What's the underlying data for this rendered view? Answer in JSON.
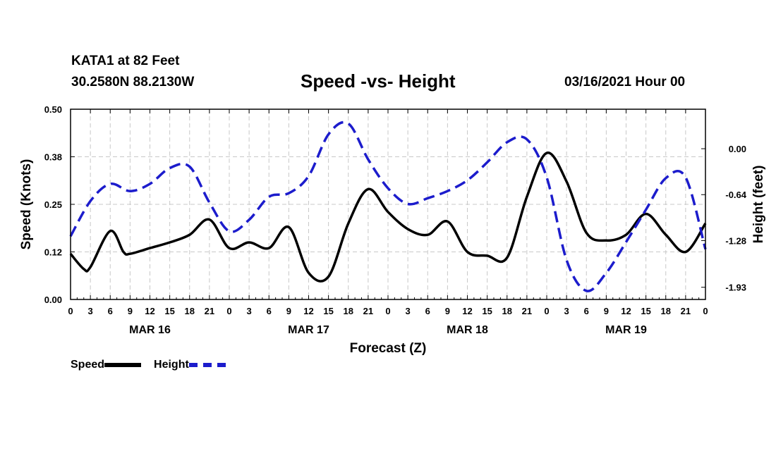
{
  "header": {
    "station": "KATA1 at 82 Feet",
    "coords": "30.2580N 88.2130W",
    "title": "Speed -vs- Height",
    "date": "03/16/2021 Hour 00"
  },
  "colors": {
    "speed": "#000000",
    "height": "#1c1ccc",
    "grid": "#c8c8c8"
  },
  "chart_data": {
    "type": "line",
    "title": "Speed -vs- Height",
    "xlabel": "Forecast (Z)",
    "ylabel": "Speed (Knots)",
    "y2label": "Height (feet)",
    "xlim": [
      0,
      96
    ],
    "ylim": [
      0,
      0.5
    ],
    "y2lim": [
      -2.1,
      0.55
    ],
    "x_ticks": [
      0,
      3,
      6,
      9,
      12,
      15,
      18,
      21,
      24,
      27,
      30,
      33,
      36,
      39,
      42,
      45,
      48,
      51,
      54,
      57,
      60,
      63,
      66,
      69,
      72,
      75,
      78,
      81,
      84,
      87,
      90,
      93,
      96
    ],
    "x_tick_labels": [
      "0",
      "3",
      "6",
      "9",
      "12",
      "15",
      "18",
      "21",
      "0",
      "3",
      "6",
      "9",
      "12",
      "15",
      "18",
      "21",
      "0",
      "3",
      "6",
      "9",
      "12",
      "15",
      "18",
      "21",
      "0",
      "3",
      "6",
      "9",
      "12",
      "15",
      "18",
      "21",
      "0"
    ],
    "day_labels": [
      {
        "x": 12,
        "label": "MAR 16"
      },
      {
        "x": 36,
        "label": "MAR 17"
      },
      {
        "x": 60,
        "label": "MAR 18"
      },
      {
        "x": 84,
        "label": "MAR 19"
      }
    ],
    "y_ticks": [
      0,
      0.125,
      0.25,
      0.375,
      0.5
    ],
    "y_tick_labels": [
      "0.00",
      "0.12",
      "0.25",
      "0.38",
      "0.50"
    ],
    "y2_ticks": [
      0,
      -0.64,
      -1.28,
      -1.93
    ],
    "y2_tick_labels": [
      "0.00",
      "-0.64",
      "-1.28",
      "-1.93"
    ],
    "legend": [
      {
        "name": "Speed",
        "style": "solid"
      },
      {
        "name": "Height",
        "style": "dashed"
      }
    ],
    "series": [
      {
        "name": "Speed",
        "axis": "left",
        "x": [
          0,
          2,
          3,
          6,
          8,
          9,
          12,
          15,
          18,
          21,
          24,
          27,
          30,
          33,
          36,
          39,
          42,
          45,
          48,
          51,
          54,
          57,
          60,
          63,
          66,
          69,
          72,
          75,
          78,
          81,
          84,
          87,
          90,
          93,
          96
        ],
        "values": [
          0.12,
          0.08,
          0.085,
          0.18,
          0.125,
          0.12,
          0.135,
          0.15,
          0.17,
          0.21,
          0.135,
          0.15,
          0.135,
          0.19,
          0.07,
          0.06,
          0.2,
          0.29,
          0.23,
          0.185,
          0.17,
          0.205,
          0.125,
          0.115,
          0.11,
          0.27,
          0.385,
          0.31,
          0.175,
          0.155,
          0.17,
          0.225,
          0.17,
          0.125,
          0.2
        ]
      },
      {
        "name": "Height",
        "axis": "right",
        "x": [
          0,
          3,
          6,
          9,
          12,
          15,
          18,
          21,
          24,
          27,
          30,
          33,
          36,
          39,
          42,
          45,
          48,
          51,
          54,
          57,
          60,
          63,
          66,
          69,
          72,
          75,
          78,
          81,
          84,
          87,
          90,
          93,
          96
        ],
        "values": [
          -1.22,
          -0.73,
          -0.49,
          -0.59,
          -0.49,
          -0.27,
          -0.25,
          -0.75,
          -1.15,
          -0.99,
          -0.67,
          -0.62,
          -0.38,
          0.2,
          0.35,
          -0.15,
          -0.55,
          -0.77,
          -0.69,
          -0.59,
          -0.44,
          -0.19,
          0.09,
          0.13,
          -0.4,
          -1.55,
          -1.98,
          -1.73,
          -1.3,
          -0.85,
          -0.41,
          -0.4,
          -1.4
        ]
      }
    ]
  }
}
